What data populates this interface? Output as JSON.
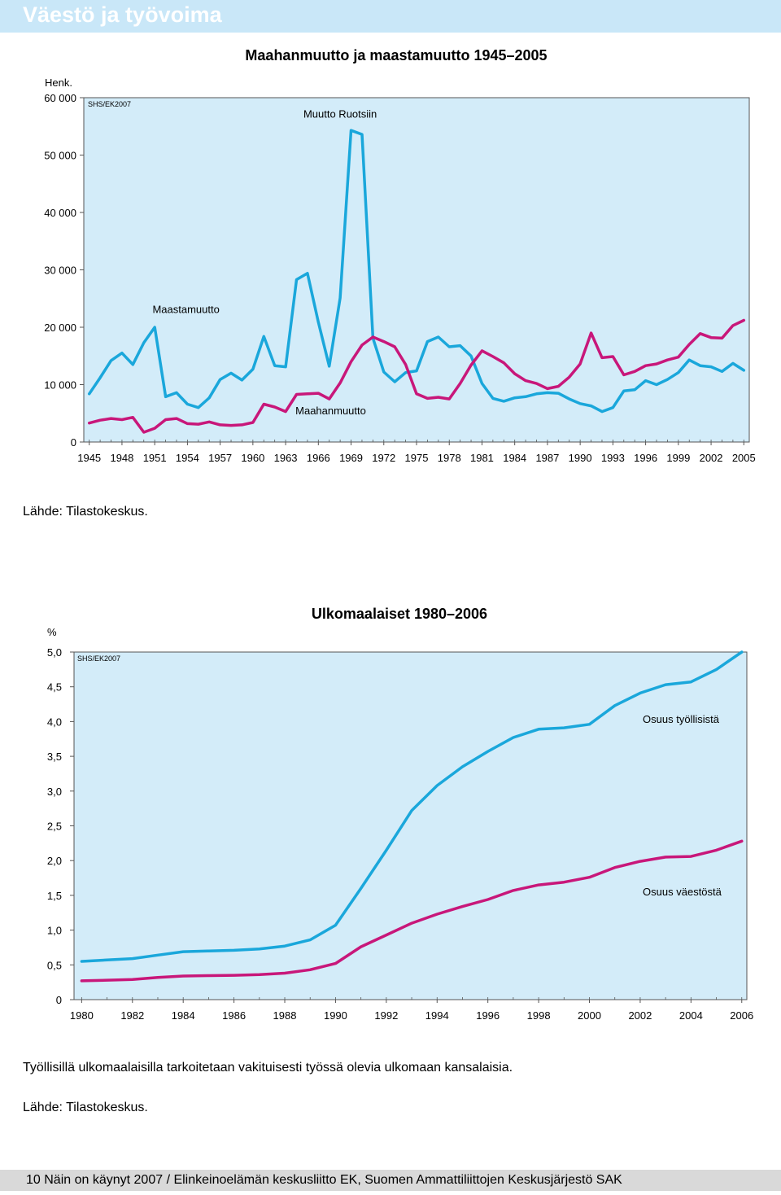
{
  "header": {
    "title": "Väestö ja työvoima"
  },
  "footer": {
    "text": "10  Näin on käynyt 2007 / Elinkeinoelämän keskusliitto EK, Suomen Ammattiliittojen Keskusjärjestö SAK"
  },
  "chart1_source": "Lähde: Tilastokeskus.",
  "chart2_note": "Työllisillä ulkomaalaisilla tarkoitetaan vakituisesti työssä olevia ulkomaan kansalaisia.",
  "chart2_source": "Lähde: Tilastokeskus.",
  "colors": {
    "plot_bg": "#d3ecf9",
    "cyan": "#1aa7db",
    "magenta": "#c8177a",
    "header": "#c9e7f8",
    "footer": "#d9d9d9"
  },
  "chart_data": [
    {
      "type": "line",
      "title": "Maahanmuutto ja maastamuutto 1945–2005",
      "ylabel": "Henk.",
      "credit": "SHS/EK2007",
      "ylim": [
        0,
        60000
      ],
      "xlim": [
        1944.5,
        2005.5
      ],
      "yticks": [
        {
          "value": 0,
          "label": "0"
        },
        {
          "value": 10000,
          "label": "10 000"
        },
        {
          "value": 20000,
          "label": "20 000"
        },
        {
          "value": 30000,
          "label": "30 000"
        },
        {
          "value": 40000,
          "label": "40 000"
        },
        {
          "value": 50000,
          "label": "50 000"
        },
        {
          "value": 60000,
          "label": "60 000"
        }
      ],
      "xticks": [
        {
          "value": 1945,
          "label": "1945"
        },
        {
          "value": 1948,
          "label": "1948"
        },
        {
          "value": 1951,
          "label": "1951"
        },
        {
          "value": 1954,
          "label": "1954"
        },
        {
          "value": 1957,
          "label": "1957"
        },
        {
          "value": 1960,
          "label": "1960"
        },
        {
          "value": 1963,
          "label": "1963"
        },
        {
          "value": 1966,
          "label": "1966"
        },
        {
          "value": 1969,
          "label": "1969"
        },
        {
          "value": 1972,
          "label": "1972"
        },
        {
          "value": 1975,
          "label": "1975"
        },
        {
          "value": 1978,
          "label": "1978"
        },
        {
          "value": 1981,
          "label": "1981"
        },
        {
          "value": 1984,
          "label": "1984"
        },
        {
          "value": 1987,
          "label": "1987"
        },
        {
          "value": 1990,
          "label": "1990"
        },
        {
          "value": 1993,
          "label": "1993"
        },
        {
          "value": 1996,
          "label": "1996"
        },
        {
          "value": 1999,
          "label": "1999"
        },
        {
          "value": 2002,
          "label": "2002"
        },
        {
          "value": 2005,
          "label": "2005"
        }
      ],
      "x_start": 1945,
      "annotations": [
        {
          "text": "Muutto Ruotsiin",
          "x": 1968,
          "y": 56500,
          "anchor": "middle"
        },
        {
          "text": "Maastamuutto",
          "x": 1950.8,
          "y": 22500,
          "anchor": "start"
        },
        {
          "text": "Maahanmuutto",
          "x": 1963.9,
          "y": 4800,
          "anchor": "start"
        }
      ],
      "series": [
        {
          "name": "Maastamuutto",
          "color": "#1aa7db",
          "values": [
            8400,
            11200,
            14200,
            15500,
            13500,
            17300,
            20000,
            7900,
            8600,
            6600,
            6000,
            7700,
            10900,
            12000,
            10800,
            12700,
            18400,
            13300,
            13100,
            28300,
            29400,
            20900,
            13200,
            25100,
            54300,
            53600,
            18100,
            12200,
            10500,
            12100,
            12400,
            17500,
            18300,
            16600,
            16800,
            15000,
            10200,
            7600,
            7100,
            7700,
            7900,
            8400,
            8600,
            8500,
            7500,
            6700,
            6300,
            5300,
            6000,
            8900,
            9100,
            10700,
            10000,
            10900,
            12100,
            14300,
            13300,
            13100,
            12300,
            13700,
            12500
          ]
        },
        {
          "name": "Maahanmuutto",
          "color": "#c8177a",
          "values": [
            3300,
            3800,
            4100,
            3900,
            4300,
            1700,
            2400,
            3900,
            4100,
            3200,
            3100,
            3500,
            3000,
            2900,
            3000,
            3400,
            6600,
            6100,
            5300,
            8300,
            8400,
            8500,
            7500,
            10300,
            14000,
            16900,
            18300,
            17500,
            16600,
            13500,
            8400,
            7600,
            7800,
            7500,
            10200,
            13400,
            15900,
            14900,
            13800,
            11900,
            10700,
            10200,
            9300,
            9700,
            11300,
            13600,
            19000,
            14700,
            14900,
            11700,
            12300,
            13300,
            13600,
            14300,
            14800,
            17000,
            18900,
            18200,
            18100,
            20300,
            21200
          ]
        }
      ]
    },
    {
      "type": "line",
      "title": "Ulkomaalaiset 1980–2006",
      "ylabel": "%",
      "credit": "SHS/EK2007",
      "ylim": [
        0,
        5.0
      ],
      "xlim": [
        1979.7,
        2006.2
      ],
      "yticks": [
        {
          "value": 0,
          "label": "0"
        },
        {
          "value": 0.5,
          "label": "0,5"
        },
        {
          "value": 1.0,
          "label": "1,0"
        },
        {
          "value": 1.5,
          "label": "1,5"
        },
        {
          "value": 2.0,
          "label": "2,0"
        },
        {
          "value": 2.5,
          "label": "2,5"
        },
        {
          "value": 3.0,
          "label": "3,0"
        },
        {
          "value": 3.5,
          "label": "3,5"
        },
        {
          "value": 4.0,
          "label": "4,0"
        },
        {
          "value": 4.5,
          "label": "4,5"
        },
        {
          "value": 5.0,
          "label": "5,0"
        }
      ],
      "xticks": [
        {
          "value": 1980,
          "label": "1980"
        },
        {
          "value": 1982,
          "label": "1982"
        },
        {
          "value": 1984,
          "label": "1984"
        },
        {
          "value": 1986,
          "label": "1986"
        },
        {
          "value": 1988,
          "label": "1988"
        },
        {
          "value": 1990,
          "label": "1990"
        },
        {
          "value": 1992,
          "label": "1992"
        },
        {
          "value": 1994,
          "label": "1994"
        },
        {
          "value": 1996,
          "label": "1996"
        },
        {
          "value": 1998,
          "label": "1998"
        },
        {
          "value": 2000,
          "label": "2000"
        },
        {
          "value": 2002,
          "label": "2002"
        },
        {
          "value": 2004,
          "label": "2004"
        },
        {
          "value": 2006,
          "label": "2006"
        }
      ],
      "x_start": 1980,
      "annotations": [
        {
          "text": "Osuus työllisistä",
          "x": 2002.1,
          "y": 3.98,
          "anchor": "start"
        },
        {
          "text": "Osuus väestöstä",
          "x": 2002.1,
          "y": 1.5,
          "anchor": "start"
        }
      ],
      "series": [
        {
          "name": "Osuus työllisistä",
          "color": "#1aa7db",
          "values": [
            0.55,
            0.57,
            0.59,
            0.64,
            0.69,
            0.7,
            0.71,
            0.73,
            0.77,
            0.86,
            1.07,
            1.6,
            2.15,
            2.72,
            3.08,
            3.35,
            3.57,
            3.77,
            3.89,
            3.91,
            3.96,
            4.23,
            4.41,
            4.53,
            4.57,
            4.75,
            5.0
          ]
        },
        {
          "name": "Osuus väestöstä",
          "color": "#c8177a",
          "values": [
            0.27,
            0.28,
            0.29,
            0.32,
            0.34,
            0.345,
            0.35,
            0.36,
            0.38,
            0.43,
            0.52,
            0.76,
            0.93,
            1.1,
            1.23,
            1.34,
            1.44,
            1.57,
            1.65,
            1.69,
            1.76,
            1.9,
            1.99,
            2.05,
            2.06,
            2.15,
            2.28
          ]
        }
      ]
    }
  ]
}
